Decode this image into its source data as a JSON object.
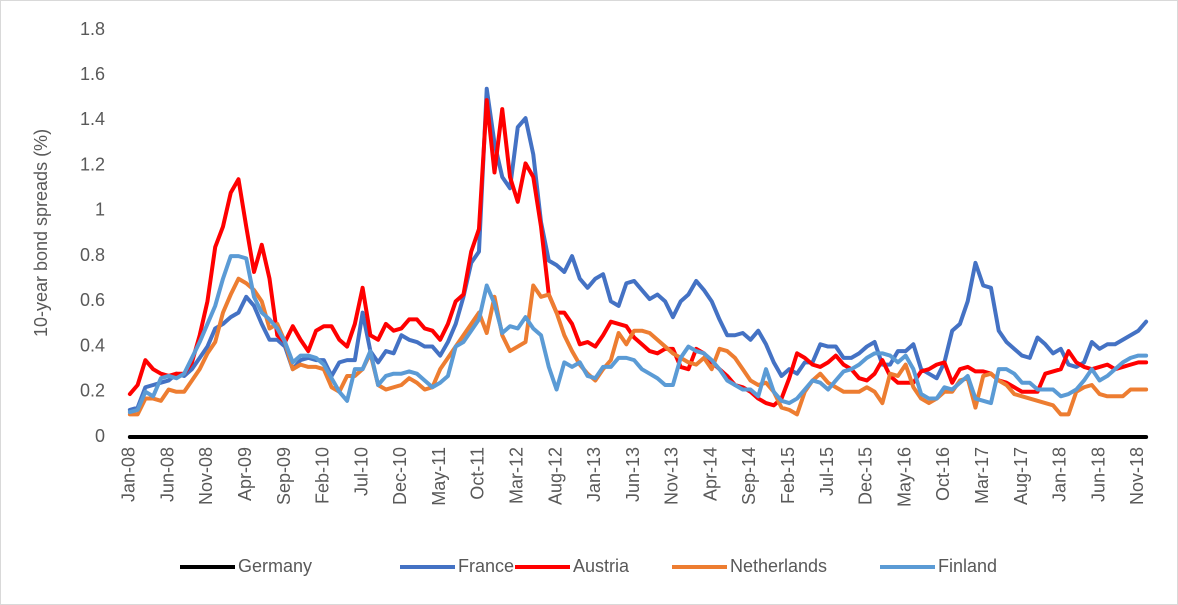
{
  "chart_data": {
    "type": "line",
    "y_label": "10-year bond spreads (%)",
    "categories": [
      "Jan-08",
      null,
      null,
      null,
      null,
      "Jun-08",
      null,
      null,
      null,
      null,
      "Nov-08",
      null,
      null,
      null,
      null,
      "Apr-09",
      null,
      null,
      null,
      null,
      "Sep-09",
      null,
      null,
      null,
      null,
      "Feb-10",
      null,
      null,
      null,
      null,
      "Jul-10",
      null,
      null,
      null,
      null,
      "Dec-10",
      null,
      null,
      null,
      null,
      "May-11",
      null,
      null,
      null,
      null,
      "Oct-11",
      null,
      null,
      null,
      null,
      "Mar-12",
      null,
      null,
      null,
      null,
      "Aug-12",
      null,
      null,
      null,
      null,
      "Jan-13",
      null,
      null,
      null,
      null,
      "Jun-13",
      null,
      null,
      null,
      null,
      "Nov-13",
      null,
      null,
      null,
      null,
      "Apr-14",
      null,
      null,
      null,
      null,
      "Sep-14",
      null,
      null,
      null,
      null,
      "Feb-15",
      null,
      null,
      null,
      null,
      "Jul-15",
      null,
      null,
      null,
      null,
      "Dec-15",
      null,
      null,
      null,
      null,
      "May-16",
      null,
      null,
      null,
      null,
      "Oct-16",
      null,
      null,
      null,
      null,
      "Mar-17",
      null,
      null,
      null,
      null,
      "Aug-17",
      null,
      null,
      null,
      null,
      "Jan-18",
      null,
      null,
      null,
      null,
      "Jun-18",
      null,
      null,
      null,
      null,
      "Nov-18",
      null
    ],
    "series": [
      {
        "name": "Germany",
        "color": "#000000",
        "values": [
          0,
          0,
          0,
          0,
          0,
          0,
          0,
          0,
          0,
          0,
          0,
          0,
          0,
          0,
          0,
          0,
          0,
          0,
          0,
          0,
          0,
          0,
          0,
          0,
          0,
          0,
          0,
          0,
          0,
          0,
          0,
          0,
          0,
          0,
          0,
          0,
          0,
          0,
          0,
          0,
          0,
          0,
          0,
          0,
          0,
          0,
          0,
          0,
          0,
          0,
          0,
          0,
          0,
          0,
          0,
          0,
          0,
          0,
          0,
          0,
          0,
          0,
          0,
          0,
          0,
          0,
          0,
          0,
          0,
          0,
          0,
          0,
          0,
          0,
          0,
          0,
          0,
          0,
          0,
          0,
          0,
          0,
          0,
          0,
          0,
          0,
          0,
          0,
          0,
          0,
          0,
          0,
          0,
          0,
          0,
          0,
          0,
          0,
          0,
          0,
          0,
          0,
          0,
          0,
          0,
          0,
          0,
          0,
          0,
          0,
          0,
          0,
          0,
          0,
          0,
          0,
          0,
          0,
          0,
          0,
          0,
          0,
          0,
          0,
          0,
          0,
          0,
          0,
          0,
          0,
          0,
          0
        ]
      },
      {
        "name": "France",
        "color": "#4472c4",
        "values": [
          0.12,
          0.13,
          0.22,
          0.23,
          0.24,
          0.25,
          0.28,
          0.27,
          0.3,
          0.35,
          0.4,
          0.48,
          0.5,
          0.53,
          0.55,
          0.62,
          0.58,
          0.5,
          0.43,
          0.43,
          0.4,
          0.3,
          0.34,
          0.35,
          0.34,
          0.34,
          0.27,
          0.33,
          0.34,
          0.34,
          0.55,
          0.38,
          0.33,
          0.38,
          0.37,
          0.45,
          0.43,
          0.42,
          0.4,
          0.4,
          0.36,
          0.42,
          0.5,
          0.62,
          0.77,
          0.82,
          1.54,
          1.3,
          1.15,
          1.1,
          1.37,
          1.41,
          1.25,
          0.95,
          0.78,
          0.76,
          0.73,
          0.8,
          0.7,
          0.66,
          0.7,
          0.72,
          0.6,
          0.58,
          0.68,
          0.69,
          0.65,
          0.61,
          0.63,
          0.6,
          0.53,
          0.6,
          0.63,
          0.69,
          0.65,
          0.6,
          0.52,
          0.45,
          0.45,
          0.46,
          0.43,
          0.47,
          0.41,
          0.33,
          0.27,
          0.3,
          0.28,
          0.33,
          0.33,
          0.41,
          0.4,
          0.4,
          0.35,
          0.35,
          0.37,
          0.4,
          0.42,
          0.32,
          0.32,
          0.38,
          0.38,
          0.41,
          0.3,
          0.28,
          0.26,
          0.33,
          0.47,
          0.5,
          0.6,
          0.77,
          0.67,
          0.66,
          0.47,
          0.42,
          0.39,
          0.36,
          0.35,
          0.44,
          0.41,
          0.37,
          0.39,
          0.32,
          0.31,
          0.33,
          0.42,
          0.39,
          0.41,
          0.41,
          0.43,
          0.45,
          0.47,
          0.51
        ]
      },
      {
        "name": "Austria",
        "color": "#ff0000",
        "values": [
          0.19,
          0.23,
          0.34,
          0.3,
          0.28,
          0.27,
          0.28,
          0.28,
          0.33,
          0.45,
          0.6,
          0.84,
          0.93,
          1.08,
          1.14,
          0.93,
          0.73,
          0.85,
          0.7,
          0.45,
          0.42,
          0.49,
          0.43,
          0.38,
          0.47,
          0.49,
          0.49,
          0.43,
          0.4,
          0.5,
          0.66,
          0.45,
          0.43,
          0.5,
          0.47,
          0.48,
          0.52,
          0.52,
          0.48,
          0.47,
          0.43,
          0.5,
          0.6,
          0.63,
          0.82,
          0.92,
          1.49,
          1.17,
          1.45,
          1.15,
          1.04,
          1.21,
          1.15,
          0.93,
          0.63,
          0.55,
          0.55,
          0.5,
          0.41,
          0.42,
          0.4,
          0.45,
          0.51,
          0.5,
          0.49,
          0.44,
          0.41,
          0.38,
          0.37,
          0.39,
          0.39,
          0.31,
          0.3,
          0.39,
          0.37,
          0.33,
          0.3,
          0.27,
          0.23,
          0.22,
          0.2,
          0.17,
          0.15,
          0.14,
          0.17,
          0.26,
          0.37,
          0.35,
          0.32,
          0.31,
          0.33,
          0.36,
          0.32,
          0.3,
          0.26,
          0.25,
          0.28,
          0.34,
          0.27,
          0.24,
          0.24,
          0.24,
          0.29,
          0.3,
          0.32,
          0.33,
          0.24,
          0.3,
          0.31,
          0.29,
          0.29,
          0.28,
          0.25,
          0.24,
          0.22,
          0.2,
          0.2,
          0.2,
          0.28,
          0.29,
          0.3,
          0.38,
          0.33,
          0.31,
          0.3,
          0.31,
          0.32,
          0.3,
          0.31,
          0.32,
          0.33,
          0.33
        ]
      },
      {
        "name": "Netherlands",
        "color": "#ed7d31",
        "values": [
          0.1,
          0.1,
          0.17,
          0.17,
          0.16,
          0.21,
          0.2,
          0.2,
          0.25,
          0.3,
          0.37,
          0.42,
          0.55,
          0.63,
          0.7,
          0.68,
          0.65,
          0.6,
          0.48,
          0.5,
          0.42,
          0.3,
          0.32,
          0.31,
          0.31,
          0.3,
          0.22,
          0.2,
          0.27,
          0.27,
          0.3,
          0.37,
          0.23,
          0.21,
          0.22,
          0.23,
          0.26,
          0.24,
          0.21,
          0.22,
          0.3,
          0.35,
          0.4,
          0.45,
          0.5,
          0.55,
          0.46,
          0.62,
          0.45,
          0.38,
          0.4,
          0.42,
          0.67,
          0.62,
          0.63,
          0.55,
          0.45,
          0.38,
          0.32,
          0.28,
          0.25,
          0.3,
          0.34,
          0.46,
          0.41,
          0.47,
          0.47,
          0.46,
          0.43,
          0.4,
          0.37,
          0.35,
          0.33,
          0.32,
          0.35,
          0.3,
          0.39,
          0.38,
          0.35,
          0.3,
          0.25,
          0.23,
          0.24,
          0.2,
          0.13,
          0.12,
          0.1,
          0.2,
          0.25,
          0.28,
          0.24,
          0.22,
          0.2,
          0.2,
          0.2,
          0.22,
          0.2,
          0.15,
          0.28,
          0.27,
          0.32,
          0.22,
          0.17,
          0.15,
          0.17,
          0.2,
          0.2,
          0.25,
          0.26,
          0.13,
          0.27,
          0.28,
          0.25,
          0.23,
          0.19,
          0.18,
          0.17,
          0.16,
          0.15,
          0.14,
          0.1,
          0.1,
          0.2,
          0.22,
          0.23,
          0.19,
          0.18,
          0.18,
          0.18,
          0.21,
          0.21,
          0.21
        ]
      },
      {
        "name": "Finland",
        "color": "#5b9bd5",
        "values": [
          0.11,
          0.12,
          0.2,
          0.18,
          0.26,
          0.27,
          0.26,
          0.28,
          0.35,
          0.42,
          0.5,
          0.58,
          0.7,
          0.8,
          0.8,
          0.79,
          0.62,
          0.55,
          0.52,
          0.48,
          0.42,
          0.33,
          0.36,
          0.36,
          0.35,
          0.32,
          0.26,
          0.2,
          0.16,
          0.3,
          0.3,
          0.38,
          0.23,
          0.27,
          0.28,
          0.28,
          0.29,
          0.28,
          0.25,
          0.22,
          0.24,
          0.27,
          0.4,
          0.42,
          0.47,
          0.52,
          0.67,
          0.59,
          0.46,
          0.49,
          0.48,
          0.53,
          0.48,
          0.45,
          0.31,
          0.21,
          0.33,
          0.31,
          0.33,
          0.27,
          0.26,
          0.31,
          0.31,
          0.35,
          0.35,
          0.34,
          0.3,
          0.28,
          0.26,
          0.23,
          0.23,
          0.35,
          0.4,
          0.38,
          0.37,
          0.34,
          0.3,
          0.25,
          0.23,
          0.21,
          0.21,
          0.18,
          0.3,
          0.2,
          0.16,
          0.15,
          0.17,
          0.21,
          0.25,
          0.24,
          0.21,
          0.25,
          0.29,
          0.3,
          0.32,
          0.35,
          0.37,
          0.37,
          0.36,
          0.33,
          0.36,
          0.3,
          0.19,
          0.17,
          0.17,
          0.22,
          0.21,
          0.24,
          0.27,
          0.17,
          0.16,
          0.15,
          0.3,
          0.3,
          0.28,
          0.24,
          0.24,
          0.21,
          0.21,
          0.21,
          0.18,
          0.19,
          0.21,
          0.25,
          0.3,
          0.25,
          0.27,
          0.3,
          0.33,
          0.35,
          0.36,
          0.36
        ]
      }
    ],
    "ylim": [
      0,
      1.8
    ],
    "yticks": [
      0,
      0.2,
      0.4,
      0.6,
      0.8,
      1,
      1.2,
      1.4,
      1.6,
      1.8
    ],
    "grid": false,
    "legend": "bottom"
  }
}
